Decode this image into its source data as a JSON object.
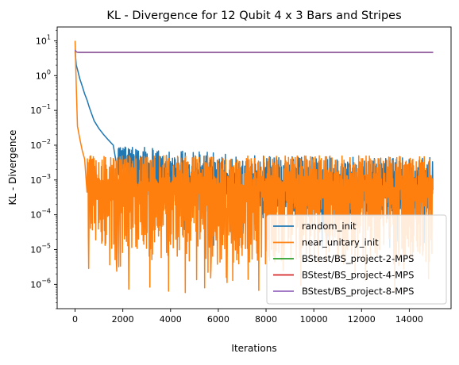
{
  "chart_data": {
    "type": "line",
    "title": "KL - Divergence for 12 Qubit 4 x 3 Bars and Stripes",
    "xlabel": "Iterations",
    "ylabel": "KL - Divergence",
    "xlim": [
      -750,
      15750
    ],
    "ylim": [
      2e-07,
      25
    ],
    "yscale": "log",
    "grid": false,
    "legend_position": "lower-right",
    "x_ticks": [
      {
        "value": 0,
        "label": "0"
      },
      {
        "value": 2000,
        "label": "2000"
      },
      {
        "value": 4000,
        "label": "4000"
      },
      {
        "value": 6000,
        "label": "6000"
      },
      {
        "value": 8000,
        "label": "8000"
      },
      {
        "value": 10000,
        "label": "10000"
      },
      {
        "value": 12000,
        "label": "12000"
      },
      {
        "value": 14000,
        "label": "14000"
      }
    ],
    "y_ticks": [
      {
        "value": 1e-06,
        "base": "10",
        "exp": "−6"
      },
      {
        "value": 1e-05,
        "base": "10",
        "exp": "−5"
      },
      {
        "value": 0.0001,
        "base": "10",
        "exp": "−4"
      },
      {
        "value": 0.001,
        "base": "10",
        "exp": "−3"
      },
      {
        "value": 0.01,
        "base": "10",
        "exp": "−2"
      },
      {
        "value": 0.1,
        "base": "10",
        "exp": "−1"
      },
      {
        "value": 1,
        "base": "10",
        "exp": "0"
      },
      {
        "value": 10,
        "base": "10",
        "exp": "1"
      }
    ],
    "series": [
      {
        "name": "random_init",
        "color": "#1f77b4",
        "x": [
          0,
          50,
          100,
          200,
          300,
          400,
          500,
          600,
          800,
          1000,
          1200,
          1400,
          1600,
          1800,
          2000,
          2200,
          2400,
          2600,
          2800,
          3000,
          3400,
          3800,
          4200,
          4600,
          5000,
          5500,
          6000,
          6500,
          7000,
          7500,
          8000,
          8500,
          9000,
          9500,
          10000,
          10500,
          11000,
          11500,
          12000,
          12500,
          13000,
          13500,
          14000,
          14500,
          15000
        ],
        "y": [
          5.0,
          2.0,
          1.5,
          0.8,
          0.5,
          0.3,
          0.2,
          0.12,
          0.05,
          0.03,
          0.02,
          0.014,
          0.01,
          0.007,
          0.005,
          0.0035,
          0.0025,
          0.002,
          0.0018,
          0.0016,
          0.0015,
          0.0014,
          0.0013,
          0.0012,
          0.0011,
          0.001,
          0.00095,
          0.0009,
          0.00088,
          0.00085,
          0.0008,
          0.0008,
          0.00078,
          0.00076,
          0.00075,
          0.00074,
          0.00073,
          0.00072,
          0.00071,
          0.0007,
          0.0007,
          0.0007,
          0.0007,
          0.0007,
          0.0007
        ],
        "noise": {
          "start": 1800,
          "end": 15000,
          "spread_low": 1.0,
          "spread_high": 0.8,
          "spike_max": 0.009
        }
      },
      {
        "name": "near_unitary_init",
        "color": "#ff7f0e",
        "x": [
          0,
          20,
          50,
          100,
          200,
          300,
          400,
          500,
          600,
          800,
          1000,
          1200,
          1400,
          1600,
          1800,
          2000,
          2200,
          2400,
          2600,
          2800,
          3000,
          3200,
          3400,
          3600,
          3800,
          4000,
          4500,
          5000,
          5500,
          6000,
          6500,
          7000,
          7500,
          8000,
          9000,
          10000,
          11000,
          12000,
          13000,
          14000,
          15000
        ],
        "y": [
          10.0,
          3.0,
          0.5,
          0.035,
          0.015,
          0.007,
          0.004,
          0.0025,
          0.0016,
          0.001,
          0.0008,
          0.0007,
          0.00065,
          0.0006,
          0.0006,
          0.0006,
          0.0006,
          0.0006,
          0.0006,
          0.0006,
          0.0006,
          0.0006,
          0.0006,
          0.0006,
          0.0006,
          0.0006,
          0.0006,
          0.0006,
          0.0006,
          0.0006,
          0.0006,
          0.0006,
          0.0006,
          0.0006,
          0.0006,
          0.0006,
          0.0006,
          0.0006,
          0.0006,
          0.0006,
          0.0006
        ],
        "noise": {
          "start": 500,
          "end": 15000,
          "spread_low": 2.2,
          "spread_high": 1.1,
          "spike_max": 0.005,
          "min_value": 5e-07
        }
      },
      {
        "name": "BStest/BS_project-2-MPS",
        "color": "#2ca02c",
        "x": [
          0,
          30,
          60,
          100,
          200,
          15000
        ],
        "y": [
          5.5,
          5.0,
          4.8,
          4.7,
          4.65,
          4.65
        ]
      },
      {
        "name": "BStest/BS_project-4-MPS",
        "color": "#d62728",
        "x": [
          0,
          30,
          60,
          100,
          200,
          15000
        ],
        "y": [
          5.5,
          5.0,
          4.8,
          4.7,
          4.65,
          4.65
        ]
      },
      {
        "name": "BStest/BS_project-8-MPS",
        "color": "#9467bd",
        "x": [
          0,
          30,
          60,
          100,
          200,
          15000
        ],
        "y": [
          5.5,
          5.0,
          4.8,
          4.7,
          4.65,
          4.65
        ]
      }
    ]
  }
}
